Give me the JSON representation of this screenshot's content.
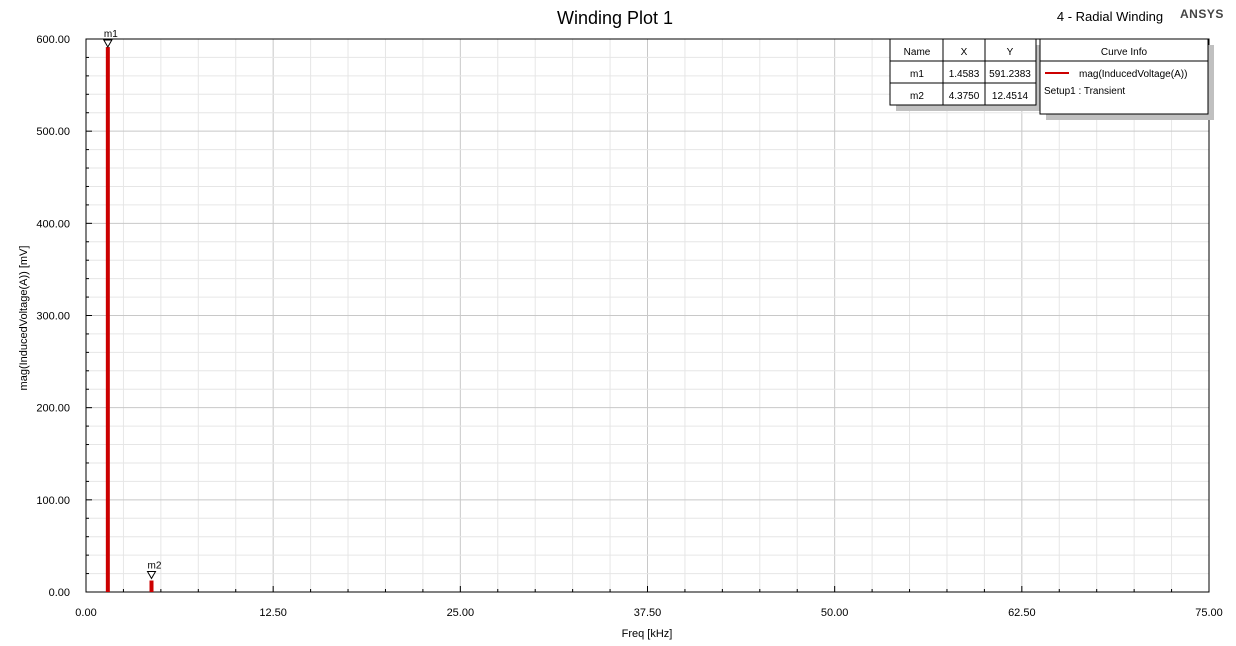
{
  "header": {
    "title": "Winding Plot 1",
    "design_name": "4 - Radial Winding",
    "brand": "ANSYS"
  },
  "colors": {
    "series": "#cc0000",
    "grid_major": "#c8c8c8",
    "grid_minor": "#e6e6e6",
    "shadow": "#c0c0c0"
  },
  "marker_table": {
    "headers": [
      "Name",
      "X",
      "Y"
    ],
    "rows": [
      [
        "m1",
        "1.4583",
        "591.2383"
      ],
      [
        "m2",
        "4.3750",
        "12.4514"
      ]
    ]
  },
  "curve_info": {
    "title": "Curve Info",
    "series_label": "mag(InducedVoltage(A))",
    "setup_label": "Setup1 : Transient"
  },
  "chart_data": {
    "type": "bar",
    "title": "Winding Plot 1",
    "xlabel": "Freq [kHz]",
    "ylabel": "mag(InducedVoltage(A)) [mV]",
    "xlim": [
      0,
      75
    ],
    "ylim": [
      0,
      600
    ],
    "x_ticks": [
      "0.00",
      "12.50",
      "25.00",
      "37.50",
      "50.00",
      "62.50",
      "75.00"
    ],
    "y_ticks": [
      "0.00",
      "100.00",
      "200.00",
      "300.00",
      "400.00",
      "500.00",
      "600.00"
    ],
    "grid": true,
    "legend": "top-right",
    "series": [
      {
        "name": "mag(InducedVoltage(A))",
        "x": [
          1.4583,
          4.375
        ],
        "values": [
          591.2383,
          12.4514
        ]
      }
    ],
    "markers": [
      {
        "name": "m1",
        "x": 1.4583,
        "y": 591.2383
      },
      {
        "name": "m2",
        "x": 4.375,
        "y": 12.4514
      }
    ]
  }
}
